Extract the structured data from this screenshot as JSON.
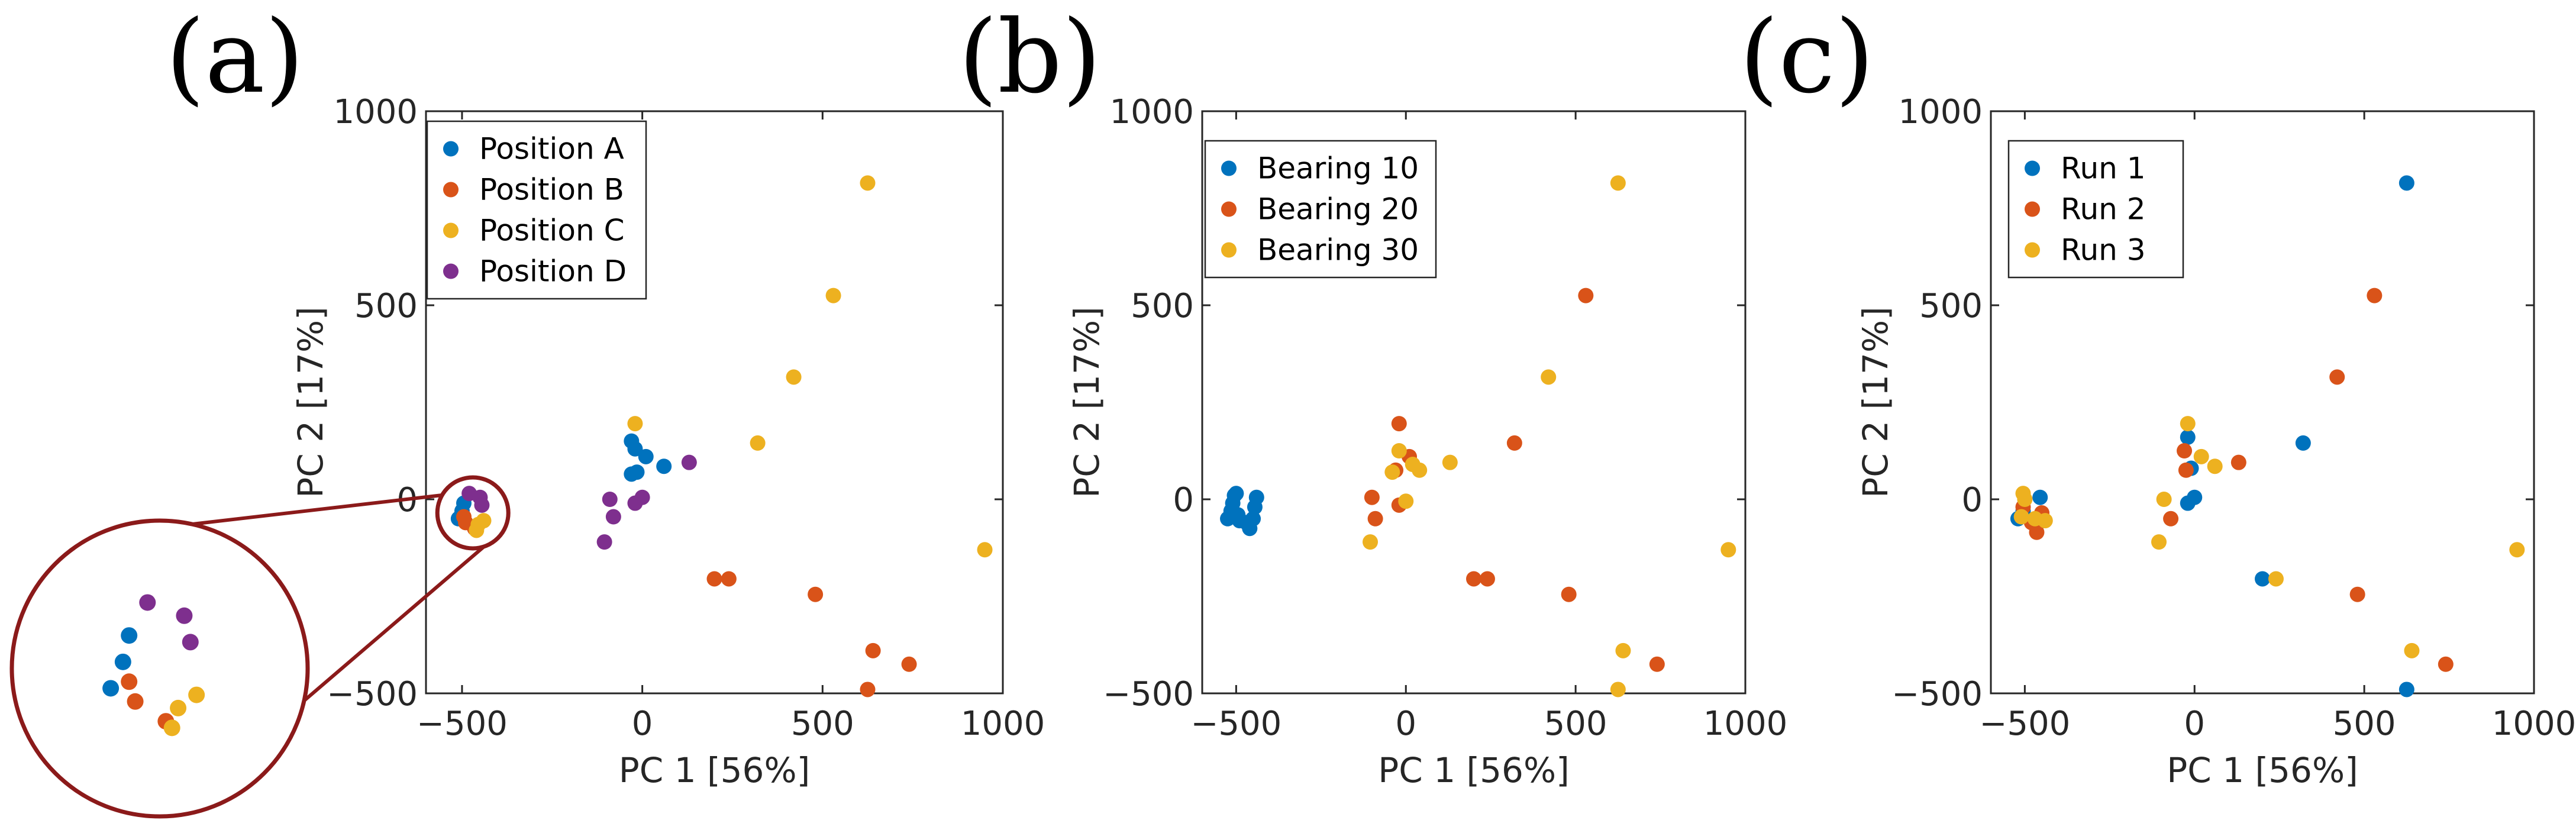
{
  "figure_labels": [
    "(a)",
    "(b)",
    "(c)"
  ],
  "colors": {
    "blue": "#0072BD",
    "orange": "#D95319",
    "yellow": "#EDB120",
    "purple": "#7E2F8E",
    "zoom": "#8B1A1A",
    "axis": "#262626"
  },
  "chart_data": [
    {
      "type": "scatter",
      "panel": "(a)",
      "xlabel": "PC 1 [56%]",
      "ylabel": "PC 2 [17%]",
      "xlim": [
        -600,
        1000
      ],
      "ylim": [
        -500,
        1000
      ],
      "xticks": [
        -500,
        0,
        500,
        1000
      ],
      "yticks": [
        -500,
        0,
        500,
        1000
      ],
      "xtick_labels": [
        "−500",
        "0",
        "500",
        "1000"
      ],
      "ytick_labels": [
        "−500",
        "0",
        "500",
        "1000"
      ],
      "legend_position": "top-left",
      "zoom_inset": {
        "center": [
          -470,
          -35
        ],
        "note": "magnified view of cluster near (-470, -35)"
      },
      "series": [
        {
          "name": "Position A",
          "color": "#0072BD",
          "points": [
            [
              -510,
              -50
            ],
            [
              -500,
              -30
            ],
            [
              -495,
              -10
            ],
            [
              -30,
              150
            ],
            [
              -20,
              130
            ],
            [
              -15,
              70
            ],
            [
              -30,
              65
            ],
            [
              10,
              110
            ],
            [
              60,
              85
            ]
          ]
        },
        {
          "name": "Position B",
          "color": "#D95319",
          "points": [
            [
              -495,
              -45
            ],
            [
              -490,
              -60
            ],
            [
              -465,
              -75
            ],
            [
              200,
              -205
            ],
            [
              240,
              -205
            ],
            [
              480,
              -245
            ],
            [
              640,
              -390
            ],
            [
              740,
              -425
            ],
            [
              625,
              -490
            ]
          ]
        },
        {
          "name": "Position C",
          "color": "#EDB120",
          "points": [
            [
              -460,
              -80
            ],
            [
              -455,
              -65
            ],
            [
              -440,
              -55
            ],
            [
              -20,
              195
            ],
            [
              320,
              145
            ],
            [
              420,
              315
            ],
            [
              530,
              525
            ],
            [
              625,
              815
            ],
            [
              950,
              -130
            ]
          ]
        },
        {
          "name": "Position D",
          "color": "#7E2F8E",
          "points": [
            [
              -480,
              15
            ],
            [
              -450,
              5
            ],
            [
              -445,
              -15
            ],
            [
              -90,
              0
            ],
            [
              -80,
              -45
            ],
            [
              -105,
              -110
            ],
            [
              -20,
              -10
            ],
            [
              0,
              5
            ],
            [
              130,
              95
            ]
          ]
        }
      ]
    },
    {
      "type": "scatter",
      "panel": "(b)",
      "xlabel": "PC 1 [56%]",
      "ylabel": "PC 2 [17%]",
      "xlim": [
        -600,
        1000
      ],
      "ylim": [
        -500,
        1000
      ],
      "xticks": [
        -500,
        0,
        500,
        1000
      ],
      "yticks": [
        -500,
        0,
        500,
        1000
      ],
      "xtick_labels": [
        "−500",
        "0",
        "500",
        "1000"
      ],
      "ytick_labels": [
        "−500",
        "0",
        "500",
        "1000"
      ],
      "legend_position": "top-left",
      "series": [
        {
          "name": "Bearing 10",
          "color": "#0072BD",
          "points": [
            [
              -525,
              -50
            ],
            [
              -515,
              -30
            ],
            [
              -510,
              -10
            ],
            [
              -505,
              10
            ],
            [
              -500,
              15
            ],
            [
              -495,
              -40
            ],
            [
              -490,
              -55
            ],
            [
              -470,
              -60
            ],
            [
              -460,
              -75
            ],
            [
              -450,
              -50
            ],
            [
              -445,
              -20
            ],
            [
              -440,
              5
            ]
          ]
        },
        {
          "name": "Bearing 20",
          "color": "#D95319",
          "points": [
            [
              -100,
              5
            ],
            [
              -90,
              -50
            ],
            [
              -20,
              195
            ],
            [
              -30,
              75
            ],
            [
              -20,
              -15
            ],
            [
              10,
              110
            ],
            [
              200,
              -205
            ],
            [
              240,
              -205
            ],
            [
              320,
              145
            ],
            [
              480,
              -245
            ],
            [
              530,
              525
            ],
            [
              740,
              -425
            ]
          ]
        },
        {
          "name": "Bearing 30",
          "color": "#EDB120",
          "points": [
            [
              -105,
              -110
            ],
            [
              -20,
              125
            ],
            [
              0,
              -5
            ],
            [
              20,
              90
            ],
            [
              40,
              75
            ],
            [
              130,
              95
            ],
            [
              420,
              315
            ],
            [
              625,
              815
            ],
            [
              640,
              -390
            ],
            [
              625,
              -490
            ],
            [
              950,
              -130
            ],
            [
              -40,
              70
            ]
          ]
        }
      ]
    },
    {
      "type": "scatter",
      "panel": "(c)",
      "xlabel": "PC 1 [56%]",
      "ylabel": "PC 2 [17%]",
      "xlim": [
        -600,
        1000
      ],
      "ylim": [
        -500,
        1000
      ],
      "xticks": [
        -500,
        0,
        500,
        1000
      ],
      "yticks": [
        -500,
        0,
        500,
        1000
      ],
      "xtick_labels": [
        "−500",
        "0",
        "500",
        "1000"
      ],
      "ytick_labels": [
        "−500",
        "0",
        "500",
        "1000"
      ],
      "legend_position": "top-left",
      "series": [
        {
          "name": "Run 1",
          "color": "#0072BD",
          "points": [
            [
              -520,
              -50
            ],
            [
              -505,
              -30
            ],
            [
              -455,
              5
            ],
            [
              -20,
              -10
            ],
            [
              0,
              5
            ],
            [
              -20,
              160
            ],
            [
              -10,
              80
            ],
            [
              320,
              145
            ],
            [
              200,
              -205
            ],
            [
              625,
              815
            ],
            [
              625,
              -490
            ],
            [
              -460,
              -60
            ]
          ]
        },
        {
          "name": "Run 2",
          "color": "#D95319",
          "points": [
            [
              -505,
              -20
            ],
            [
              -480,
              -60
            ],
            [
              -465,
              -85
            ],
            [
              -450,
              -35
            ],
            [
              -30,
              125
            ],
            [
              -70,
              -50
            ],
            [
              -25,
              75
            ],
            [
              130,
              95
            ],
            [
              420,
              315
            ],
            [
              480,
              -245
            ],
            [
              530,
              525
            ],
            [
              740,
              -425
            ]
          ]
        },
        {
          "name": "Run 3",
          "color": "#EDB120",
          "points": [
            [
              -510,
              -45
            ],
            [
              -505,
              15
            ],
            [
              -500,
              0
            ],
            [
              -470,
              -50
            ],
            [
              -440,
              -55
            ],
            [
              -105,
              -110
            ],
            [
              -90,
              0
            ],
            [
              -20,
              195
            ],
            [
              20,
              110
            ],
            [
              60,
              85
            ],
            [
              240,
              -205
            ],
            [
              640,
              -390
            ],
            [
              950,
              -130
            ]
          ]
        }
      ]
    }
  ]
}
